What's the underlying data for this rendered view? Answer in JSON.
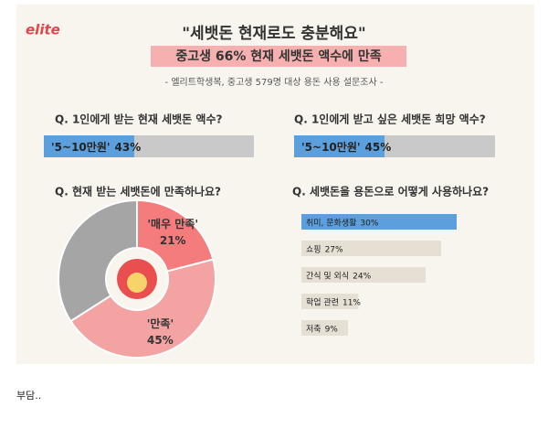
{
  "header": {
    "brand": "elite",
    "title": "\"세뱃돈 현재로도 충분해요\"",
    "subtitle": "중고생 66% 현재 세뱃돈 액수에 만족",
    "source": "- 엘리트학생복, 중고생 579명 대상 용돈 사용 설문조사 -"
  },
  "chart_data": [
    {
      "type": "progress",
      "title": "Q. 1인에게 받는 현재 세뱃돈 액수?",
      "categories": [
        "'5~10만원'"
      ],
      "values": [
        43
      ],
      "value_labels": [
        "43%"
      ],
      "color": "#5b9fdc",
      "xlim": [
        0,
        100
      ]
    },
    {
      "type": "progress",
      "title": "Q. 1인에게 받고 싶은 세뱃돈 희망 액수?",
      "categories": [
        "'5~10만원'"
      ],
      "values": [
        45
      ],
      "value_labels": [
        "45%"
      ],
      "color": "#5b9fdc",
      "xlim": [
        0,
        100
      ]
    },
    {
      "type": "pie",
      "title": "Q. 현재 받는 세뱃돈에 만족하나요?",
      "categories": [
        "'매우 만족'",
        "'만족'",
        null
      ],
      "values": [
        21,
        45,
        34
      ],
      "value_labels": [
        "21%",
        "45%",
        null
      ],
      "colors": [
        "#f47c7c",
        "#f4a3a3",
        "#a5a5a5"
      ]
    },
    {
      "type": "hbar",
      "title": "Q. 세뱃돈을 용돈으로 어떻게 사용하나요?",
      "categories": [
        "취미, 문화생활",
        "쇼핑",
        "간식 및 외식",
        "학업 관련",
        "저축"
      ],
      "values": [
        30,
        27,
        24,
        11,
        9
      ],
      "value_labels": [
        "30%",
        "27%",
        "24%",
        "11%",
        "9%"
      ],
      "colors": [
        "#5b9fdc",
        "#e6dfd3",
        "#e6dfd3",
        "#e6dfd3",
        "#e6dfd3"
      ],
      "xlim": [
        0,
        30
      ]
    }
  ],
  "caption": "부담.."
}
